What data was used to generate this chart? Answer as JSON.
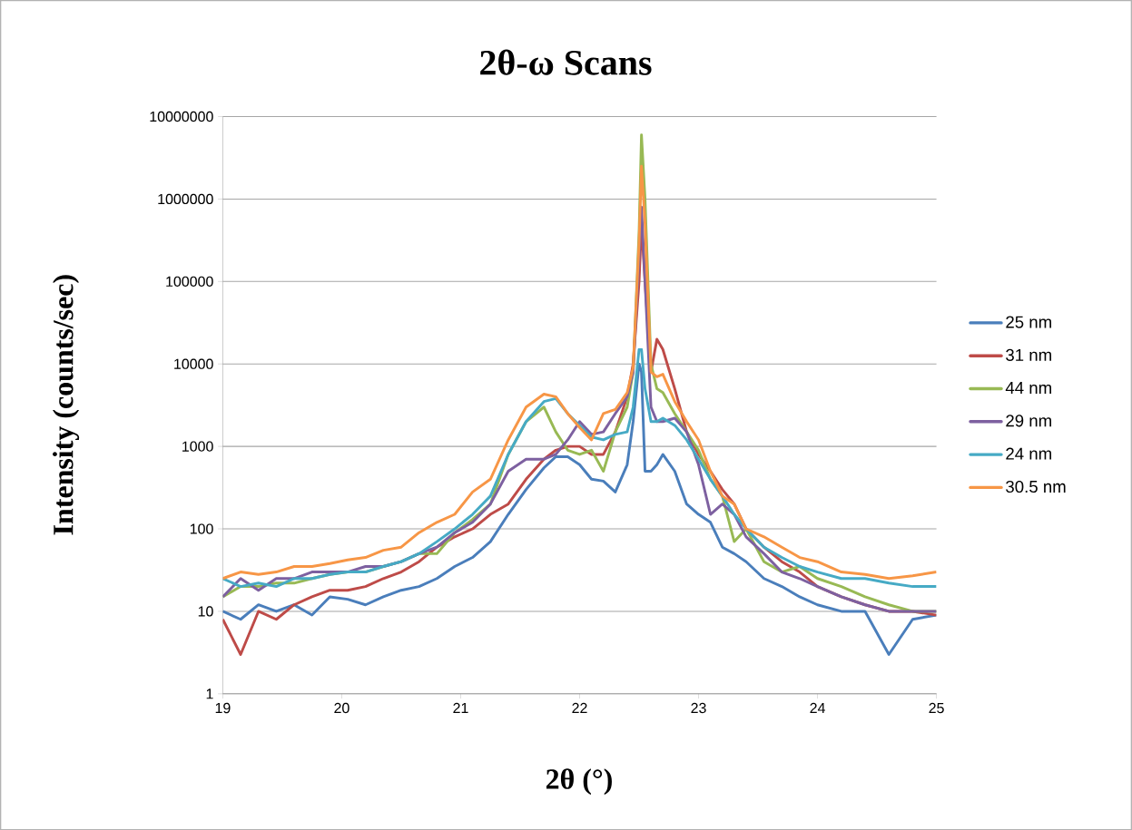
{
  "chart_data": {
    "type": "line",
    "title": "2θ-ω Scans",
    "xlabel": "2θ (°)",
    "ylabel": "Intensity  (counts/sec)",
    "x": [
      19.0,
      19.15,
      19.3,
      19.45,
      19.6,
      19.75,
      19.9,
      20.05,
      20.2,
      20.35,
      20.5,
      20.65,
      20.8,
      20.95,
      21.1,
      21.25,
      21.4,
      21.55,
      21.7,
      21.8,
      21.9,
      22.0,
      22.1,
      22.2,
      22.3,
      22.4,
      22.45,
      22.5,
      22.52,
      22.55,
      22.6,
      22.65,
      22.7,
      22.8,
      22.9,
      23.0,
      23.1,
      23.2,
      23.3,
      23.4,
      23.55,
      23.7,
      23.85,
      24.0,
      24.2,
      24.4,
      24.6,
      24.8,
      25.0
    ],
    "series": [
      {
        "name": "25 nm",
        "color": "#4a7ebb",
        "values": [
          10,
          8,
          12,
          10,
          12,
          9,
          15,
          14,
          12,
          15,
          18,
          20,
          25,
          35,
          45,
          70,
          150,
          300,
          550,
          750,
          750,
          600,
          400,
          380,
          280,
          600,
          2000,
          10000,
          8000,
          500,
          500,
          600,
          800,
          500,
          200,
          150,
          120,
          60,
          50,
          40,
          25,
          20,
          15,
          12,
          10,
          10,
          3,
          8,
          9
        ]
      },
      {
        "name": "31 nm",
        "color": "#be4b48",
        "values": [
          8,
          3,
          10,
          8,
          12,
          15,
          18,
          18,
          20,
          25,
          30,
          40,
          60,
          80,
          100,
          150,
          200,
          400,
          700,
          900,
          1000,
          1000,
          800,
          800,
          1500,
          4000,
          10000,
          100000,
          500000,
          100000,
          8000,
          20000,
          15000,
          5000,
          1500,
          800,
          500,
          300,
          200,
          100,
          60,
          40,
          30,
          20,
          15,
          12,
          10,
          10,
          9
        ]
      },
      {
        "name": "44 nm",
        "color": "#98b954",
        "values": [
          15,
          20,
          20,
          22,
          22,
          25,
          28,
          30,
          30,
          35,
          40,
          50,
          50,
          90,
          130,
          200,
          800,
          2000,
          3000,
          1500,
          900,
          800,
          900,
          500,
          1500,
          3000,
          8000,
          400000,
          6000000,
          1000000,
          10000,
          5000,
          4500,
          2500,
          1500,
          900,
          400,
          250,
          70,
          100,
          40,
          30,
          35,
          25,
          20,
          15,
          12,
          10,
          10
        ]
      },
      {
        "name": "29 nm",
        "color": "#7d60a0",
        "values": [
          15,
          25,
          18,
          25,
          25,
          30,
          30,
          30,
          35,
          35,
          40,
          50,
          60,
          90,
          120,
          200,
          500,
          700,
          700,
          800,
          1200,
          2000,
          1400,
          1500,
          2500,
          4000,
          8000,
          200000,
          800000,
          100000,
          3000,
          2000,
          2000,
          2200,
          1500,
          600,
          150,
          200,
          150,
          80,
          50,
          30,
          25,
          20,
          15,
          12,
          10,
          10,
          10
        ]
      },
      {
        "name": "24 nm",
        "color": "#46aac5",
        "values": [
          25,
          20,
          22,
          20,
          25,
          25,
          28,
          30,
          30,
          35,
          40,
          50,
          70,
          100,
          150,
          250,
          800,
          2000,
          3500,
          3800,
          2500,
          1800,
          1300,
          1200,
          1400,
          1500,
          3000,
          15000,
          15000,
          5000,
          2000,
          2000,
          2200,
          1800,
          1200,
          700,
          400,
          250,
          150,
          100,
          60,
          45,
          35,
          30,
          25,
          25,
          22,
          20,
          20
        ]
      },
      {
        "name": "30.5 nm",
        "color": "#f79646",
        "values": [
          25,
          30,
          28,
          30,
          35,
          35,
          38,
          42,
          45,
          55,
          60,
          90,
          120,
          150,
          280,
          400,
          1200,
          3000,
          4300,
          4000,
          2500,
          1700,
          1200,
          2500,
          2800,
          4500,
          9000,
          300000,
          2500000,
          500000,
          8000,
          7000,
          7500,
          3500,
          2000,
          1200,
          500,
          250,
          200,
          100,
          80,
          60,
          45,
          40,
          30,
          28,
          25,
          27,
          30
        ]
      }
    ],
    "xlim": [
      19,
      25
    ],
    "xticks": [
      19,
      20,
      21,
      22,
      23,
      24,
      25
    ],
    "ylim": [
      1,
      10000000
    ],
    "yticks": [
      1,
      10,
      100,
      1000,
      10000,
      100000,
      1000000,
      10000000
    ],
    "log": "y",
    "grid": "y",
    "legend": "right",
    "marker": "none",
    "line_style": "solid"
  }
}
